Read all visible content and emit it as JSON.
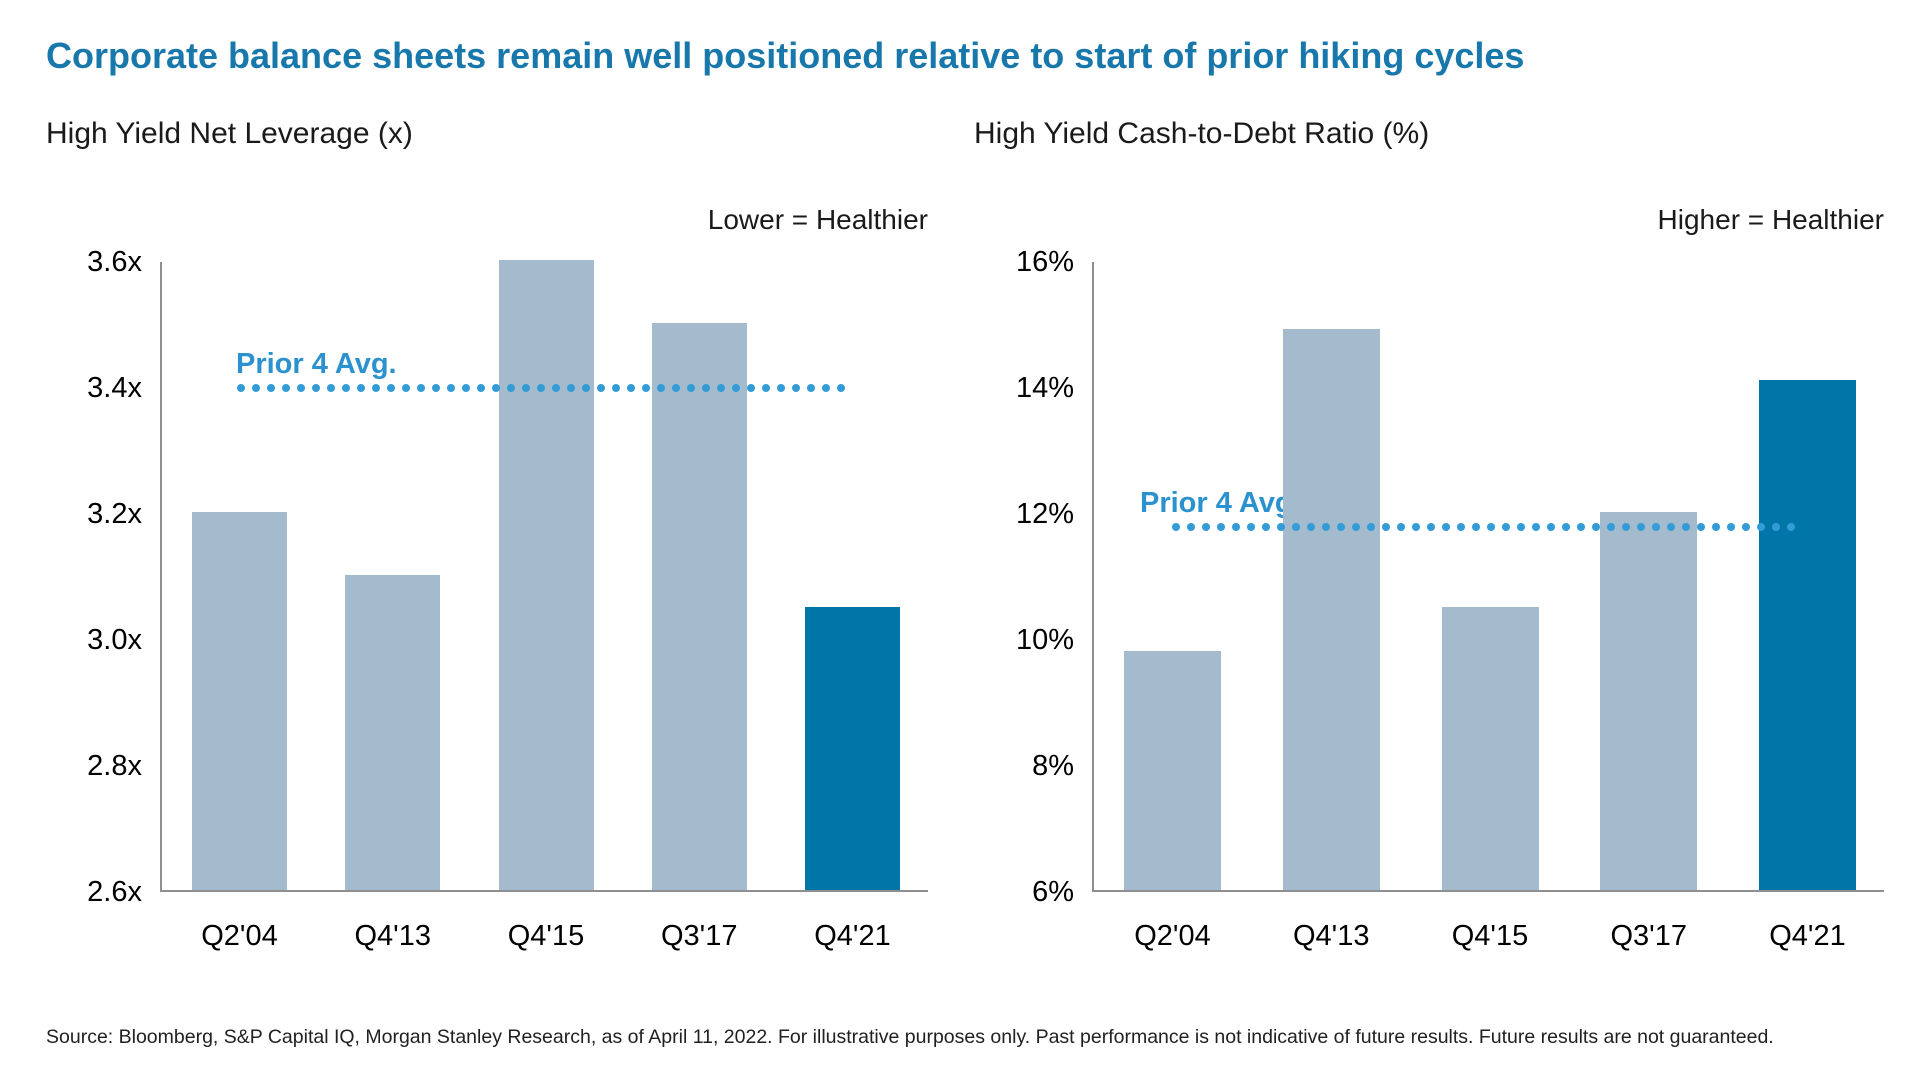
{
  "page": {
    "title": "Corporate balance sheets remain well positioned relative to start of prior hiking cycles",
    "footer": "Source: Bloomberg, S&P Capital IQ, Morgan Stanley Research, as of April 11, 2022. For illustrative purposes only. Past performance is not indicative of future results. Future results are not guaranteed."
  },
  "colors": {
    "title_blue": "#1878ab",
    "bar_default": "#a4bbce",
    "bar_highlight": "#0076a8",
    "avg_dots": "#339cd6",
    "avg_label": "#2b92cf",
    "axis": "#8f8f8f"
  },
  "chart_data": [
    {
      "type": "bar",
      "title": "High Yield Net Leverage (x)",
      "annotation": "Lower = Healthier",
      "categories": [
        "Q2'04",
        "Q4'13",
        "Q4'15",
        "Q3'17",
        "Q4'21"
      ],
      "values": [
        3.2,
        3.1,
        3.6,
        3.5,
        3.05
      ],
      "highlight_index": 4,
      "ylim": [
        2.6,
        3.6
      ],
      "yticks": [
        {
          "label": "3.6x",
          "value": 3.6
        },
        {
          "label": "3.4x",
          "value": 3.4
        },
        {
          "label": "3.2x",
          "value": 3.2
        },
        {
          "label": "3.0x",
          "value": 3.0
        },
        {
          "label": "2.8x",
          "value": 2.8
        },
        {
          "label": "2.6x",
          "value": 2.6
        }
      ],
      "avg_line": {
        "label": "Prior 4 Avg.",
        "value": 3.4
      },
      "grid": false,
      "legend": "none"
    },
    {
      "type": "bar",
      "title": "High Yield Cash-to-Debt Ratio (%)",
      "annotation": "Higher = Healthier",
      "categories": [
        "Q2'04",
        "Q4'13",
        "Q4'15",
        "Q3'17",
        "Q4'21"
      ],
      "values": [
        9.8,
        14.9,
        10.5,
        12.0,
        14.1
      ],
      "highlight_index": 4,
      "ylim": [
        6,
        16
      ],
      "yticks": [
        {
          "label": "16%",
          "value": 16
        },
        {
          "label": "14%",
          "value": 14
        },
        {
          "label": "12%",
          "value": 12
        },
        {
          "label": "10%",
          "value": 10
        },
        {
          "label": "8%",
          "value": 8
        },
        {
          "label": "6%",
          "value": 6
        }
      ],
      "avg_line": {
        "label": "Prior 4 Avg.",
        "value": 11.8
      },
      "grid": false,
      "legend": "none"
    }
  ]
}
